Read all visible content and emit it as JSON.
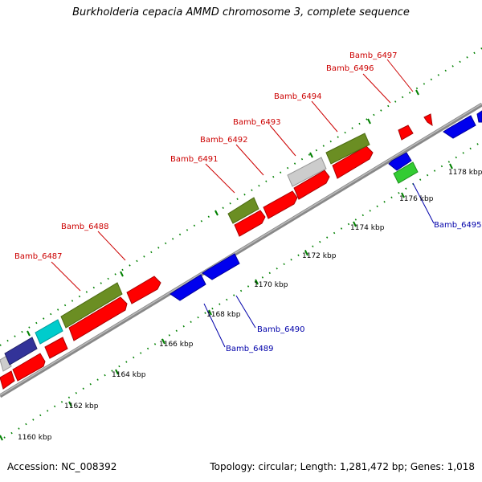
{
  "title": "Burkholderia cepacia AMMD chromosome 3, complete sequence",
  "accession": "Accession: NC_008392",
  "topology": "Topology: circular; Length: 1,281,472 bp; Genes: 1,018",
  "colors": {
    "forward_label": "#cc0000",
    "reverse_label": "#0000aa",
    "backbone": "#999999",
    "tick": "#008000",
    "red": "#ff0000",
    "blue": "#0000ee",
    "olive": "#6b8e23",
    "green": "#33cc33",
    "grey": "#cccccc",
    "cyan": "#00cccc",
    "navy": "#333399"
  },
  "kbp_labels": [
    "1160 kbp",
    "1162 kbp",
    "1164 kbp",
    "1166 kbp",
    "1168 kbp",
    "1170 kbp",
    "1172 kbp",
    "1174 kbp",
    "1176 kbp",
    "1178 kbp"
  ],
  "gene_labels": {
    "forward": [
      "Bamb_6487",
      "Bamb_6488",
      "Bamb_6491",
      "Bamb_6492",
      "Bamb_6493",
      "Bamb_6494",
      "Bamb_6496",
      "Bamb_6497"
    ],
    "reverse": [
      "Bamb_6489",
      "Bamb_6490",
      "Bamb_6495"
    ]
  }
}
